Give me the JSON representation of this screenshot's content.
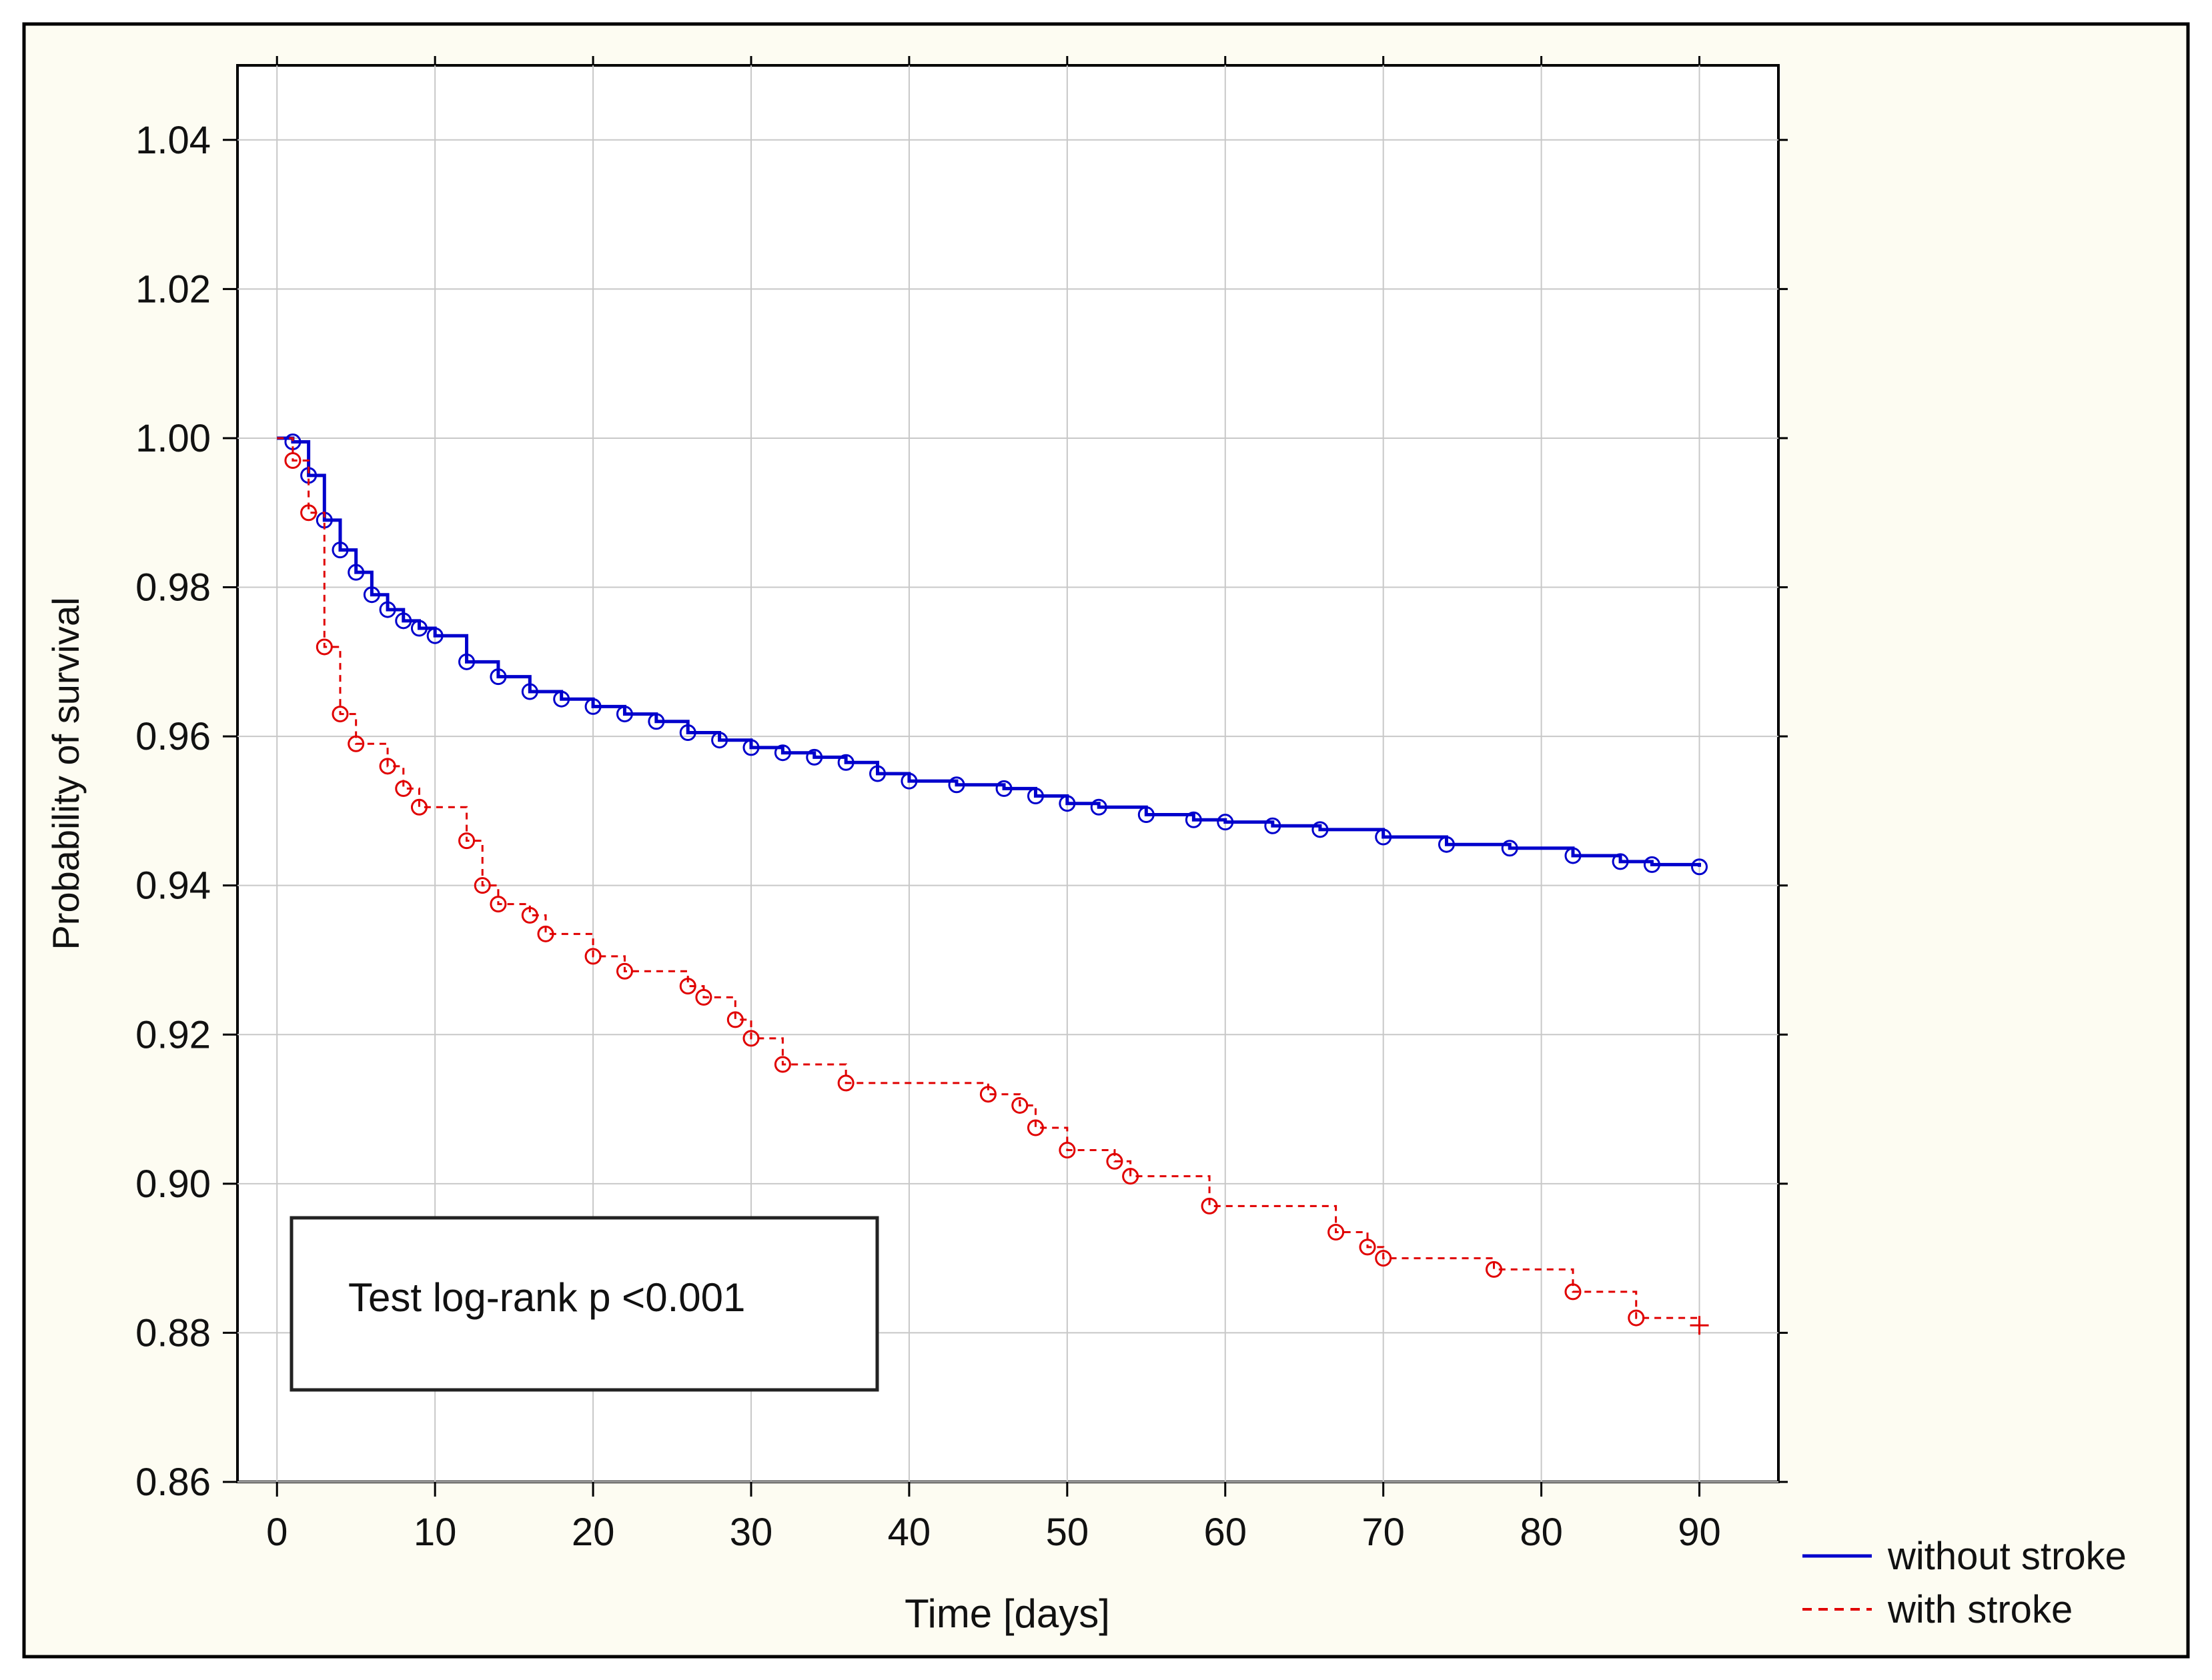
{
  "chart_data": {
    "type": "line",
    "subtype": "kaplan-meier",
    "title": "",
    "xlabel": "Time [days]",
    "ylabel": "Probability of survival",
    "xlim": [
      -2.5,
      95
    ],
    "ylim": [
      0.86,
      1.05
    ],
    "xticks": [
      0,
      10,
      20,
      30,
      40,
      50,
      60,
      70,
      80,
      90
    ],
    "xtick_labels": [
      "0",
      "10",
      "20",
      "30",
      "40",
      "50",
      "60",
      "70",
      "80",
      "90"
    ],
    "yticks": [
      0.86,
      0.88,
      0.9,
      0.92,
      0.94,
      0.96,
      0.98,
      1.0,
      1.02,
      1.04
    ],
    "ytick_labels": [
      "0.86",
      "0.88",
      "0.90",
      "0.92",
      "0.94",
      "0.96",
      "0.98",
      "1.00",
      "1.02",
      "1.04"
    ],
    "grid": true,
    "legend_position": "bottom-right-outside",
    "annotation": "Test log-rank p <0.001",
    "colors": {
      "background": "#fdfcf2",
      "plot": "#ffffff",
      "grid": "#c8c8c8",
      "without_stroke": "#0000cc",
      "with_stroke": "#e00000"
    },
    "series": [
      {
        "name": "without stroke",
        "style": "solid",
        "color": "#0000cc",
        "x": [
          0,
          1,
          2,
          3,
          4,
          5,
          6,
          7,
          8,
          9,
          10,
          12,
          14,
          16,
          18,
          20,
          22,
          24,
          26,
          28,
          30,
          32,
          34,
          36,
          38,
          40,
          43,
          46,
          48,
          50,
          52,
          55,
          58,
          60,
          63,
          66,
          70,
          74,
          78,
          82,
          85,
          87,
          90
        ],
        "y": [
          1.0,
          0.9995,
          0.995,
          0.989,
          0.985,
          0.982,
          0.979,
          0.977,
          0.9755,
          0.9745,
          0.9735,
          0.97,
          0.968,
          0.966,
          0.965,
          0.964,
          0.963,
          0.962,
          0.9605,
          0.9595,
          0.9585,
          0.9578,
          0.9572,
          0.9565,
          0.955,
          0.954,
          0.9535,
          0.953,
          0.952,
          0.951,
          0.9505,
          0.9495,
          0.9488,
          0.9485,
          0.948,
          0.9475,
          0.9465,
          0.9455,
          0.945,
          0.944,
          0.9432,
          0.9428,
          0.9425
        ]
      },
      {
        "name": "with stroke",
        "style": "dashed",
        "color": "#e00000",
        "x": [
          0,
          1,
          2,
          3,
          4,
          5,
          7,
          8,
          9,
          12,
          13,
          14,
          16,
          17,
          20,
          22,
          26,
          27,
          29,
          30,
          32,
          36,
          45,
          47,
          48,
          50,
          53,
          54,
          59,
          67,
          69,
          70,
          77,
          82,
          86,
          90
        ],
        "y": [
          1.0,
          0.997,
          0.99,
          0.972,
          0.963,
          0.959,
          0.956,
          0.953,
          0.9505,
          0.946,
          0.94,
          0.9375,
          0.936,
          0.9335,
          0.9305,
          0.9285,
          0.9265,
          0.925,
          0.922,
          0.9195,
          0.916,
          0.9135,
          0.912,
          0.9105,
          0.9075,
          0.9045,
          0.903,
          0.901,
          0.897,
          0.8935,
          0.8915,
          0.89,
          0.8885,
          0.8855,
          0.882,
          0.881
        ]
      }
    ]
  }
}
